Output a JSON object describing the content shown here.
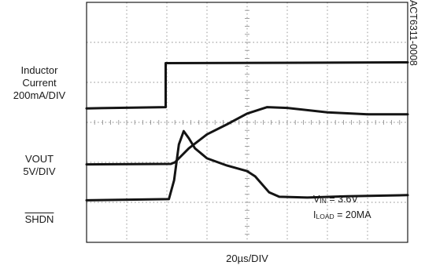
{
  "chart_data": {
    "type": "line",
    "title": "",
    "xlabel": "20µs/DIV",
    "ylabel": "",
    "x_divisions": 8,
    "y_divisions": 6,
    "grid": true,
    "channels": [
      {
        "label_lines": [
          "Inductor",
          "Current",
          "200mA/DIV"
        ],
        "points": [
          [
            0,
            1.05
          ],
          [
            2.05,
            1.08
          ],
          [
            2.18,
            1.55
          ],
          [
            2.3,
            2.45
          ],
          [
            2.42,
            2.78
          ],
          [
            2.55,
            2.6
          ],
          [
            2.7,
            2.35
          ],
          [
            3.0,
            2.1
          ],
          [
            3.5,
            1.92
          ],
          [
            4.0,
            1.78
          ],
          [
            4.2,
            1.65
          ],
          [
            4.55,
            1.25
          ],
          [
            4.8,
            1.14
          ],
          [
            5.5,
            1.12
          ],
          [
            6.5,
            1.15
          ],
          [
            8.0,
            1.18
          ]
        ]
      },
      {
        "label_lines": [
          "VOUT",
          "5V/DIV"
        ],
        "points": [
          [
            0,
            1.95
          ],
          [
            2.1,
            1.96
          ],
          [
            2.2,
            2.0
          ],
          [
            2.55,
            2.35
          ],
          [
            3.0,
            2.7
          ],
          [
            3.5,
            2.95
          ],
          [
            4.0,
            3.22
          ],
          [
            4.5,
            3.38
          ],
          [
            5.0,
            3.36
          ],
          [
            6.0,
            3.25
          ],
          [
            7.0,
            3.2
          ],
          [
            8.0,
            3.2
          ]
        ]
      },
      {
        "label_lines": [
          "SHDN"
        ],
        "points": [
          [
            0,
            3.35
          ],
          [
            1.97,
            3.38
          ],
          [
            1.97,
            4.48
          ],
          [
            8.0,
            4.5
          ]
        ]
      }
    ],
    "annotations": {
      "code": "ACT6311-0008",
      "vin": "= 3.6V",
      "iload": "= 20MA"
    }
  },
  "colors": {
    "trace": "#141414",
    "grid": "#8a8a8a",
    "border": "#1a1a1a"
  }
}
